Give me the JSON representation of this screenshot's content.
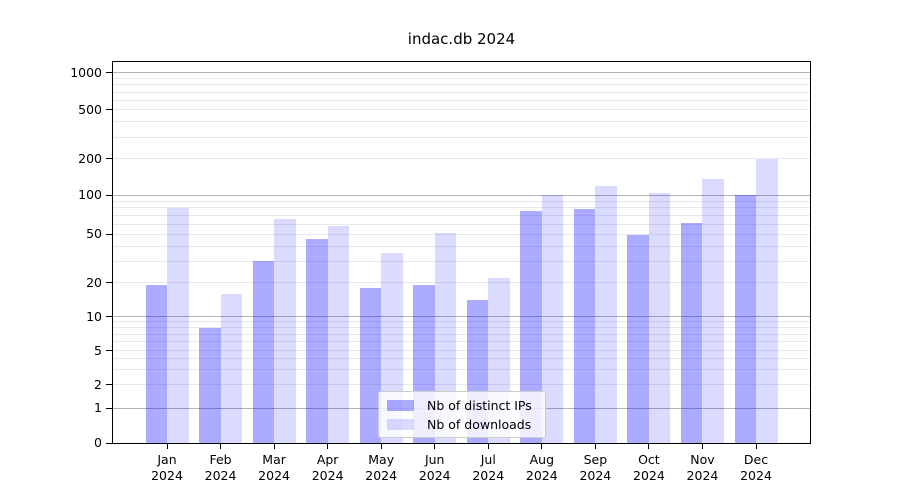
{
  "chart_data": {
    "type": "bar",
    "title": "indac.db 2024",
    "categories": [
      "Jan",
      "Feb",
      "Mar",
      "Apr",
      "May",
      "Jun",
      "Jul",
      "Aug",
      "Sep",
      "Oct",
      "Nov",
      "Dec"
    ],
    "category_year": "2024",
    "series": [
      {
        "name": "Nb of distinct IPs",
        "color": "rgba(0,0,255,0.33)",
        "color_solid": "#a8a8f5",
        "values": [
          19,
          8,
          30,
          46,
          18,
          19,
          14,
          75,
          78,
          49,
          61,
          100
        ]
      },
      {
        "name": "Nb of downloads",
        "color": "rgba(0,0,255,0.14)",
        "color_solid": "#dbdbf8",
        "values": [
          80,
          16,
          65,
          58,
          35,
          51,
          22,
          100,
          120,
          105,
          135,
          200
        ]
      }
    ],
    "yscale": "symlog",
    "yticks": [
      0,
      1,
      2,
      5,
      10,
      20,
      50,
      100,
      200,
      500,
      1000
    ],
    "ylim": [
      0,
      1100
    ],
    "grid": true,
    "grid_major_color": "#b3b3b3",
    "grid_minor_color": "#e9e9e9",
    "legend_position": "lower-center",
    "xlabel": "",
    "ylabel": ""
  }
}
